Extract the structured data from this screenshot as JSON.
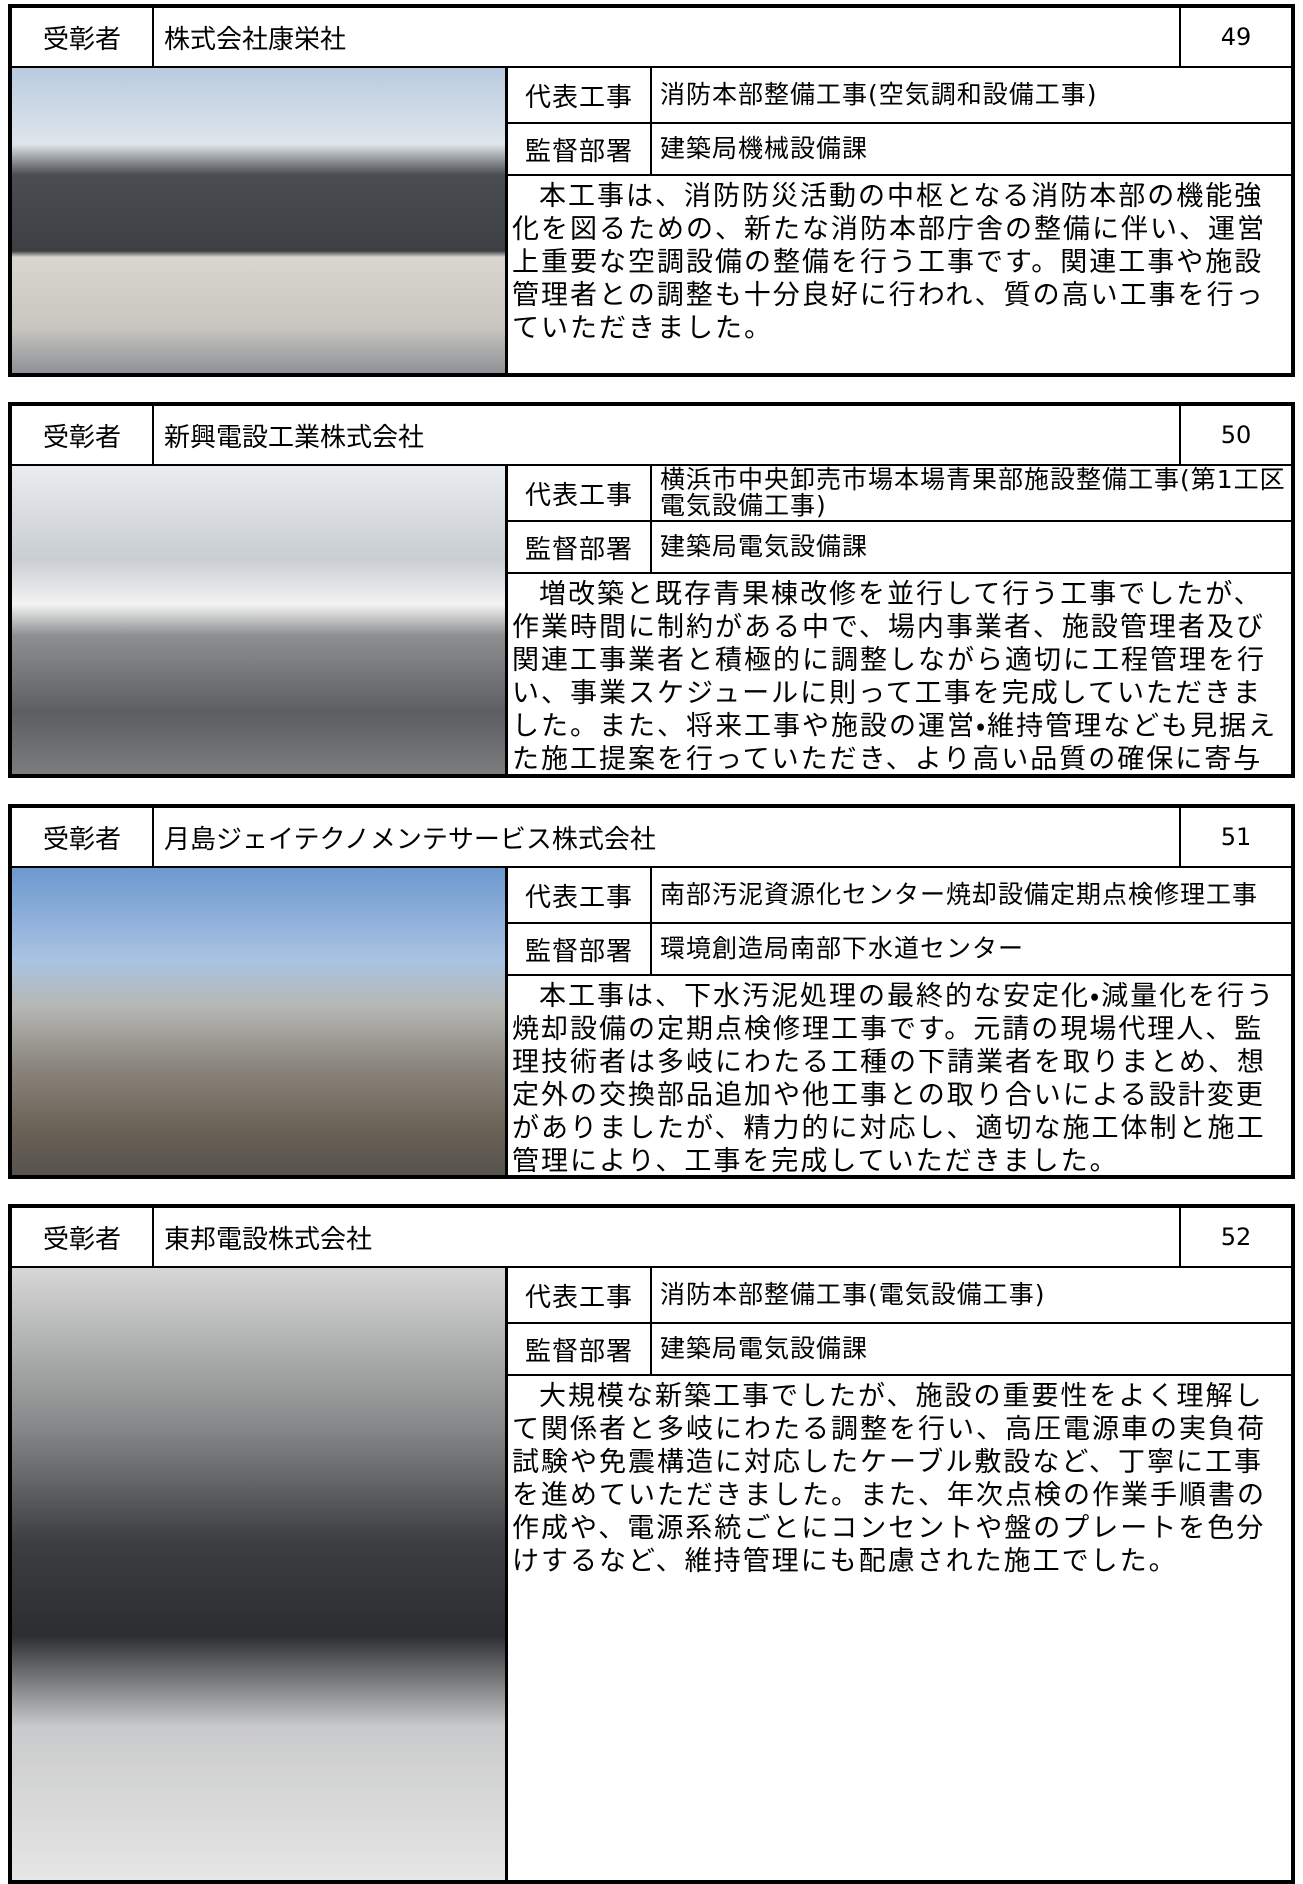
{
  "cards": [
    {
      "recipient_label": "受彰者",
      "company": "株式会社康栄社",
      "number": "49",
      "work_label": "代表工事",
      "work": "消防本部整備工事(空気調和設備工事)",
      "dept_label": "監督部署",
      "dept": "建築局機械設備課",
      "description": "本工事は、消防防災活動の中枢となる消防本部の機能強化を図るための、新たな消防本部庁舎の整備に伴い、運営上重要な空調設備の整備を行う工事です。関連工事や施設管理者との調整も十分良好に行われ、質の高い工事を行っていただきました。"
    },
    {
      "recipient_label": "受彰者",
      "company": "新興電設工業株式会社",
      "number": "50",
      "work_label": "代表工事",
      "work": "横浜市中央卸売市場本場青果部施設整備工事(第1工区電気設備工事)",
      "dept_label": "監督部署",
      "dept": "建築局電気設備課",
      "description": "増改築と既存青果棟改修を並行して行う工事でしたが、作業時間に制約がある中で、場内事業者、施設管理者及び関連工事業者と積極的に調整しながら適切に工程管理を行い、事業スケジュールに則って工事を完成していただきました。また、将来工事や施設の運営・維持管理なども見据えた施工提案を行っていただき、より高い品質の確保に寄与していただきました。"
    },
    {
      "recipient_label": "受彰者",
      "company": "月島ジェイテクノメンテサービス株式会社",
      "number": "51",
      "work_label": "代表工事",
      "work": "南部汚泥資源化センター焼却設備定期点検修理工事",
      "dept_label": "監督部署",
      "dept": "環境創造局南部下水道センター",
      "description": "本工事は、下水汚泥処理の最終的な安定化・減量化を行う焼却設備の定期点検修理工事です。元請の現場代理人、監理技術者は多岐にわたる工種の下請業者を取りまとめ、想定外の交換部品追加や他工事との取り合いによる設計変更がありましたが、精力的に対応し、適切な施工体制と施工管理により、工事を完成していただきました。"
    },
    {
      "recipient_label": "受彰者",
      "company": "東邦電設株式会社",
      "number": "52",
      "work_label": "代表工事",
      "work": "消防本部整備工事(電気設備工事)",
      "dept_label": "監督部署",
      "dept": "建築局電気設備課",
      "description": "大規模な新築工事でしたが、施設の重要性をよく理解して関係者と多岐にわたる調整を行い、高圧電源車の実負荷試験や免震構造に対応したケーブル敷設など、丁寧に工事を進めていただきました。また、年次点検の作業手順書の作成や、電源系統ごとにコンセントや盤のプレートを色分けするなど、維持管理にも配慮された施工でした。"
    }
  ]
}
